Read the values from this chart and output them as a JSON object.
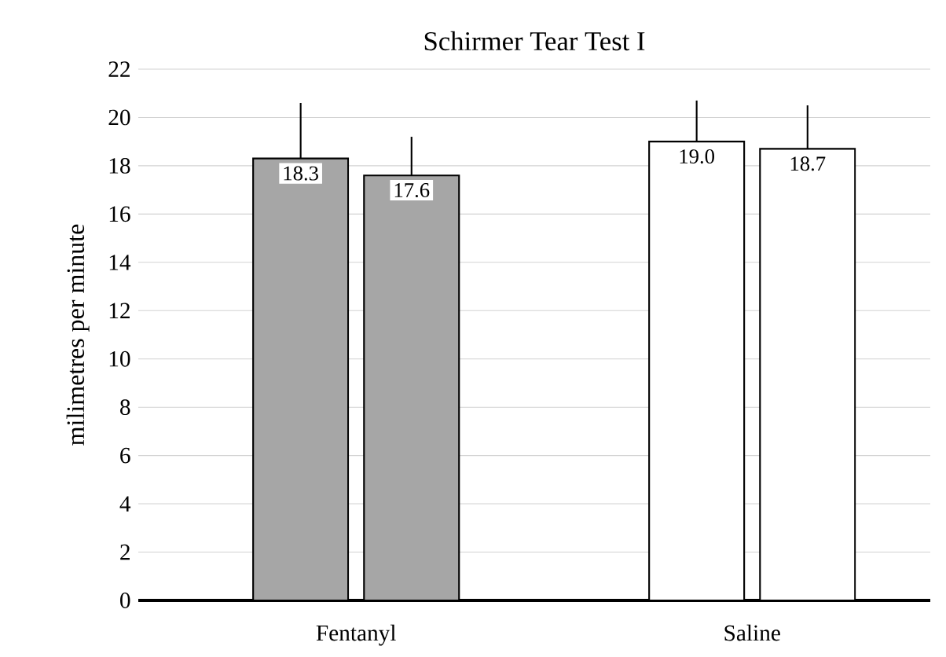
{
  "chart_data": {
    "type": "bar",
    "title": "Schirmer Tear Test I",
    "ylabel": "milimetres per minute",
    "categories": [
      "Fentanyl",
      "Saline"
    ],
    "series": [
      {
        "colors": [
          "#a6a6a6",
          "#ffffff"
        ],
        "values": [
          18.3,
          19.0
        ],
        "value_labels": [
          "18.3",
          "19.0"
        ],
        "errors": [
          [
            18.3,
            20.6
          ],
          [
            19.0,
            20.7
          ]
        ]
      },
      {
        "colors": [
          "#a6a6a6",
          "#ffffff"
        ],
        "values": [
          17.6,
          18.7
        ],
        "value_labels": [
          "17.6",
          "18.7"
        ],
        "errors": [
          [
            17.6,
            19.2
          ],
          [
            18.7,
            20.5
          ]
        ]
      }
    ],
    "ylim": [
      0,
      22
    ],
    "yticks": [
      0,
      2,
      4,
      6,
      8,
      10,
      12,
      14,
      16,
      18,
      20,
      22
    ],
    "grid": "y"
  }
}
